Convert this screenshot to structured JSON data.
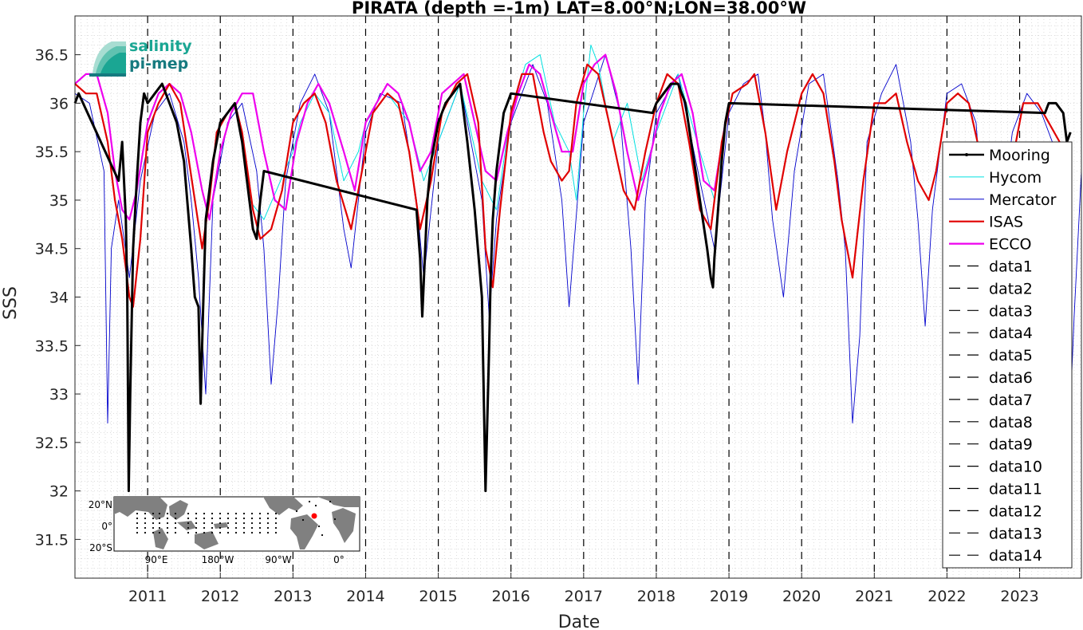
{
  "chart_data": {
    "type": "line",
    "title": "PIRATA (depth =-1m) LAT=8.00°N;LON=38.00°W",
    "xlabel": "Date",
    "ylabel": "SSS",
    "xlim": [
      2010.0,
      2023.85
    ],
    "ylim": [
      31.1,
      36.9
    ],
    "x_ticks": [
      "2011",
      "2012",
      "2013",
      "2014",
      "2015",
      "2016",
      "2017",
      "2018",
      "2019",
      "2020",
      "2021",
      "2022",
      "2023"
    ],
    "y_ticks": [
      "31.5",
      "32",
      "32.5",
      "33",
      "33.5",
      "34",
      "34.5",
      "35",
      "35.5",
      "36",
      "36.5"
    ],
    "grid": "minor dotted",
    "legend_position": "right",
    "year_boundaries": [
      2011,
      2012,
      2013,
      2014,
      2015,
      2016,
      2017,
      2018,
      2019,
      2020,
      2021,
      2022,
      2023
    ],
    "series": [
      {
        "name": "Mooring",
        "color": "#000000",
        "kind": "bold-line",
        "x": [
          2010.0,
          2010.05,
          2010.6,
          2010.65,
          2010.7,
          2010.72,
          2010.74,
          2010.76,
          2010.8,
          2010.85,
          2010.9,
          2010.95,
          2011.0,
          2011.1,
          2011.2,
          2011.3,
          2011.4,
          2011.5,
          2011.6,
          2011.65,
          2011.7,
          2011.73,
          2011.76,
          2011.8,
          2011.9,
          2012.0,
          2012.1,
          2012.2,
          2012.3,
          2012.4,
          2012.45,
          2012.5,
          2012.55,
          2012.6,
          2014.7,
          2014.75,
          2014.78,
          2014.82,
          2014.85,
          2014.9,
          2015.0,
          2015.1,
          2015.2,
          2015.3,
          2015.4,
          2015.5,
          2015.6,
          2015.65,
          2015.7,
          2015.72,
          2015.75,
          2015.8,
          2015.85,
          2015.9,
          2015.95,
          2016.0,
          2017.95,
          2018.0,
          2018.1,
          2018.2,
          2018.3,
          2018.4,
          2018.5,
          2018.6,
          2018.7,
          2018.75,
          2018.78,
          2018.8,
          2018.85,
          2018.9,
          2018.95,
          2019.0,
          2023.35,
          2023.4,
          2023.5,
          2023.6,
          2023.65,
          2023.7
        ],
        "y": [
          36.0,
          36.1,
          35.2,
          35.6,
          34.8,
          34.0,
          32.0,
          33.0,
          34.5,
          35.2,
          35.8,
          36.1,
          36.0,
          36.1,
          36.2,
          36.0,
          35.8,
          35.4,
          34.5,
          34.0,
          33.9,
          32.9,
          33.8,
          34.8,
          35.4,
          35.8,
          35.9,
          36.0,
          35.6,
          35.0,
          34.7,
          34.6,
          35.0,
          35.3,
          34.9,
          34.4,
          33.8,
          34.5,
          35.0,
          35.4,
          35.8,
          36.0,
          36.1,
          36.2,
          35.6,
          34.9,
          34.0,
          32.0,
          33.5,
          34.2,
          34.8,
          35.3,
          35.6,
          35.9,
          36.0,
          36.1,
          35.9,
          36.0,
          36.1,
          36.2,
          36.2,
          36.0,
          35.5,
          35.0,
          34.5,
          34.2,
          34.1,
          34.4,
          34.9,
          35.4,
          35.8,
          36.0,
          35.9,
          36.0,
          36.0,
          35.9,
          35.6,
          35.7
        ]
      },
      {
        "name": "Hycom",
        "color": "#00e0e0",
        "kind": "thin-line",
        "x": [
          2012.4,
          2012.6,
          2013.0,
          2013.1,
          2013.3,
          2013.5,
          2013.7,
          2013.9,
          2014.0,
          2014.3,
          2014.6,
          2014.8,
          2015.0,
          2015.3,
          2015.6,
          2015.8,
          2016.0,
          2016.2,
          2016.4,
          2016.6,
          2016.8,
          2016.9,
          2017.0,
          2017.1,
          2017.2,
          2017.4,
          2017.6,
          2017.8,
          2018.0,
          2018.3,
          2018.6,
          2018.8,
          2019.0
        ],
        "y": [
          35.0,
          34.8,
          35.5,
          35.8,
          36.1,
          35.9,
          35.2,
          35.5,
          35.8,
          36.1,
          35.8,
          35.2,
          35.6,
          36.2,
          35.2,
          34.9,
          35.9,
          36.4,
          36.5,
          35.8,
          35.5,
          35.0,
          35.9,
          36.6,
          36.4,
          35.6,
          36.0,
          35.2,
          35.7,
          36.3,
          35.5,
          35.0,
          36.0
        ]
      },
      {
        "name": "Mercator",
        "color": "#0000cc",
        "kind": "thin-line",
        "x": [
          2010.0,
          2010.2,
          2010.4,
          2010.45,
          2010.5,
          2010.6,
          2010.75,
          2010.9,
          2011.1,
          2011.3,
          2011.5,
          2011.6,
          2011.7,
          2011.8,
          2011.9,
          2012.1,
          2012.3,
          2012.5,
          2012.6,
          2012.7,
          2012.8,
          2012.9,
          2013.1,
          2013.3,
          2013.5,
          2013.7,
          2013.8,
          2014.0,
          2014.2,
          2014.5,
          2014.7,
          2014.8,
          2015.0,
          2015.3,
          2015.6,
          2015.7,
          2015.8,
          2016.0,
          2016.3,
          2016.5,
          2016.7,
          2016.8,
          2017.0,
          2017.3,
          2017.5,
          2017.65,
          2017.75,
          2017.85,
          2018.0,
          2018.3,
          2018.6,
          2018.8,
          2019.0,
          2019.2,
          2019.4,
          2019.5,
          2019.6,
          2019.75,
          2019.9,
          2020.1,
          2020.3,
          2020.5,
          2020.6,
          2020.7,
          2020.8,
          2020.9,
          2021.1,
          2021.3,
          2021.5,
          2021.6,
          2021.7,
          2021.8,
          2022.0,
          2022.2,
          2022.4,
          2022.5,
          2022.6,
          2022.7,
          2022.9,
          2023.1,
          2023.3,
          2023.5,
          2023.6,
          2023.7,
          2023.75,
          2023.85
        ],
        "y": [
          36.1,
          36.0,
          35.3,
          32.7,
          34.5,
          35.0,
          34.2,
          35.2,
          35.9,
          36.1,
          35.6,
          35.0,
          34.2,
          33.0,
          35.0,
          35.8,
          36.0,
          35.3,
          34.5,
          33.1,
          34.0,
          35.2,
          36.0,
          36.3,
          35.9,
          34.7,
          34.3,
          35.7,
          36.1,
          36.0,
          35.0,
          34.2,
          35.6,
          36.2,
          35.0,
          33.8,
          34.8,
          35.8,
          36.4,
          36.0,
          35.0,
          33.9,
          35.8,
          36.5,
          35.9,
          34.5,
          33.1,
          35.0,
          35.9,
          36.3,
          35.2,
          34.5,
          35.9,
          36.2,
          36.3,
          35.7,
          34.8,
          34.0,
          35.3,
          36.2,
          36.3,
          35.2,
          34.5,
          32.7,
          33.6,
          35.6,
          36.1,
          36.4,
          35.6,
          34.8,
          33.7,
          34.9,
          36.1,
          36.2,
          35.8,
          34.8,
          33.2,
          34.5,
          35.7,
          36.1,
          35.9,
          35.5,
          34.6,
          32.9,
          33.8,
          35.3
        ]
      },
      {
        "name": "ISAS",
        "color": "#e00000",
        "kind": "line",
        "x": [
          2010.0,
          2010.15,
          2010.3,
          2010.45,
          2010.55,
          2010.65,
          2010.75,
          2010.8,
          2010.9,
          2011.0,
          2011.15,
          2011.3,
          2011.45,
          2011.55,
          2011.65,
          2011.75,
          2011.85,
          2011.95,
          2012.1,
          2012.2,
          2012.3,
          2012.45,
          2012.55,
          2012.7,
          2012.85,
          2013.0,
          2013.15,
          2013.3,
          2013.45,
          2013.6,
          2013.8,
          2013.95,
          2014.1,
          2014.3,
          2014.45,
          2014.6,
          2014.75,
          2014.9,
          2015.05,
          2015.25,
          2015.4,
          2015.55,
          2015.65,
          2015.75,
          2015.85,
          2016.0,
          2016.15,
          2016.3,
          2016.45,
          2016.55,
          2016.7,
          2016.8,
          2016.9,
          2017.05,
          2017.2,
          2017.35,
          2017.55,
          2017.7,
          2017.85,
          2018.0,
          2018.15,
          2018.3,
          2018.45,
          2018.6,
          2018.75,
          2018.9,
          2019.05,
          2019.25,
          2019.35,
          2019.5,
          2019.65,
          2019.8,
          2020.0,
          2020.15,
          2020.3,
          2020.45,
          2020.55,
          2020.7,
          2020.85,
          2021.0,
          2021.15,
          2021.3,
          2021.45,
          2021.6,
          2021.75,
          2021.85,
          2022.0,
          2022.15,
          2022.3,
          2022.45,
          2022.6,
          2022.75,
          2022.9,
          2023.05,
          2023.25,
          2023.4,
          2023.55
        ],
        "y": [
          36.2,
          36.1,
          36.1,
          35.6,
          35.0,
          34.6,
          34.0,
          33.9,
          34.6,
          35.7,
          36.0,
          36.2,
          36.0,
          35.5,
          35.0,
          34.5,
          35.0,
          35.7,
          35.9,
          36.0,
          35.7,
          34.9,
          34.6,
          34.7,
          35.1,
          35.8,
          36.0,
          36.1,
          35.8,
          35.2,
          34.7,
          35.3,
          35.9,
          36.1,
          36.0,
          35.5,
          34.7,
          35.2,
          35.9,
          36.2,
          36.3,
          35.8,
          34.5,
          34.1,
          34.9,
          35.9,
          36.3,
          36.3,
          35.7,
          35.4,
          35.2,
          35.3,
          36.0,
          36.4,
          36.3,
          35.8,
          35.1,
          34.9,
          35.5,
          36.0,
          36.3,
          36.2,
          35.6,
          34.9,
          34.7,
          35.6,
          36.1,
          36.2,
          36.3,
          35.7,
          34.9,
          35.5,
          36.1,
          36.3,
          36.1,
          35.4,
          34.8,
          34.2,
          35.2,
          36.0,
          36.0,
          36.1,
          35.6,
          35.2,
          35.0,
          35.3,
          36.0,
          36.1,
          36.0,
          35.5,
          35.1,
          34.9,
          35.4,
          36.0,
          36.0,
          35.8,
          35.6
        ]
      },
      {
        "name": "ECCO",
        "color": "#ee00ee",
        "kind": "line",
        "x": [
          2010.0,
          2010.15,
          2010.3,
          2010.45,
          2010.55,
          2010.65,
          2010.75,
          2010.85,
          2011.0,
          2011.15,
          2011.3,
          2011.45,
          2011.6,
          2011.75,
          2011.85,
          2012.0,
          2012.15,
          2012.3,
          2012.45,
          2012.6,
          2012.75,
          2012.9,
          2013.05,
          2013.2,
          2013.35,
          2013.5,
          2013.7,
          2013.85,
          2014.0,
          2014.15,
          2014.3,
          2014.45,
          2014.6,
          2014.75,
          2014.9,
          2015.05,
          2015.2,
          2015.35,
          2015.5,
          2015.65,
          2015.8,
          2015.95,
          2016.1,
          2016.25,
          2016.4,
          2016.55,
          2016.7,
          2016.85,
          2017.0,
          2017.15,
          2017.3,
          2017.45,
          2017.6,
          2017.75,
          2017.9,
          2018.05,
          2018.2,
          2018.35,
          2018.5,
          2018.65,
          2018.8,
          2018.95
        ],
        "y": [
          36.2,
          36.3,
          36.3,
          35.9,
          35.3,
          34.9,
          34.8,
          35.1,
          35.8,
          36.1,
          36.2,
          36.1,
          35.7,
          35.1,
          34.8,
          35.5,
          35.9,
          36.1,
          36.1,
          35.5,
          35.0,
          34.9,
          35.6,
          36.0,
          36.2,
          36.0,
          35.5,
          35.1,
          35.8,
          36.0,
          36.2,
          36.1,
          35.8,
          35.3,
          35.5,
          36.1,
          36.2,
          36.3,
          35.8,
          35.3,
          35.2,
          35.7,
          36.1,
          36.4,
          36.3,
          35.9,
          35.5,
          35.5,
          36.2,
          36.4,
          36.5,
          36.1,
          35.5,
          35.0,
          35.4,
          35.9,
          36.2,
          36.3,
          35.9,
          35.2,
          35.1,
          35.8
        ]
      }
    ],
    "extra_legend_entries": [
      "data1",
      "data2",
      "data3",
      "data4",
      "data5",
      "data6",
      "data7",
      "data8",
      "data9",
      "data10",
      "data11",
      "data12",
      "data13",
      "data14"
    ]
  },
  "logo": {
    "line1": "salinity",
    "line2": "pi-mep",
    "colors": [
      "#1aa693",
      "#167a7f"
    ]
  },
  "inset_map": {
    "lat_labels": [
      "20°N",
      "0°",
      "20°S"
    ],
    "lon_labels": [
      "90°E",
      "180°W",
      "90°W",
      "0°"
    ],
    "land_color": "#808080",
    "ocean_color": "#ffffff",
    "marker_color": "#ff0000"
  }
}
